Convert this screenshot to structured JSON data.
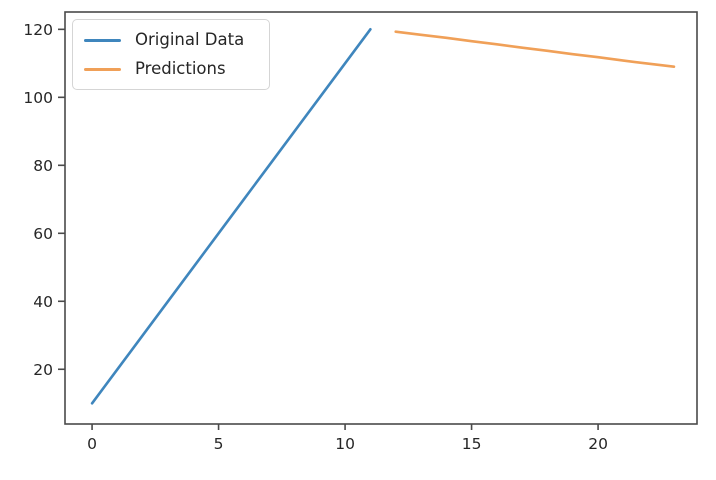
{
  "chart_data": {
    "type": "line",
    "title": "",
    "xlabel": "",
    "ylabel": "",
    "xticks": [
      0,
      5,
      10,
      15,
      20
    ],
    "yticks": [
      20,
      40,
      60,
      80,
      100,
      120
    ],
    "xlim": [
      -1.07,
      23.91
    ],
    "ylim": [
      3.9,
      125.1
    ],
    "grid": false,
    "legend_position": "upper-left",
    "series": [
      {
        "name": "Original Data",
        "color": "#3f86bd",
        "x": [
          0,
          1,
          2,
          3,
          4,
          5,
          6,
          7,
          8,
          9,
          10,
          11
        ],
        "y": [
          10,
          20,
          30,
          40,
          50,
          60,
          70,
          80,
          90,
          100,
          110,
          120
        ]
      },
      {
        "name": "Predictions",
        "color": "#f0a058",
        "x": [
          12,
          13,
          14,
          15,
          16,
          17,
          18,
          19,
          20,
          21,
          22,
          23
        ],
        "y": [
          119.3,
          118.4,
          117.5,
          116.5,
          115.6,
          114.6,
          113.7,
          112.7,
          111.8,
          110.8,
          109.9,
          109.0
        ]
      }
    ],
    "axis_color": "#4a4a4a",
    "tick_label_color": "#262626"
  }
}
